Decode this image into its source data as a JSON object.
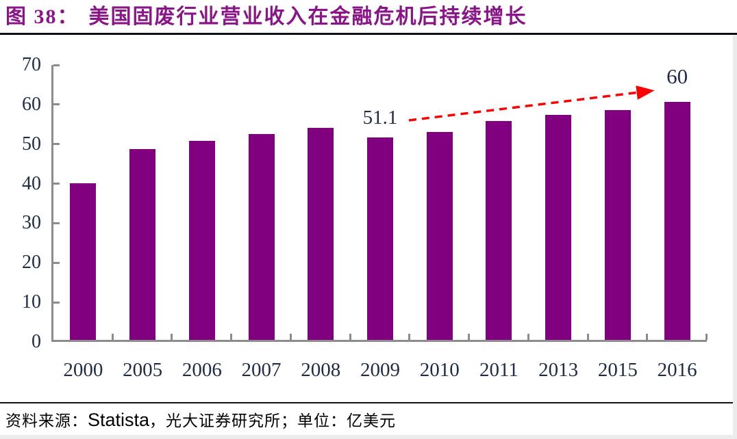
{
  "header": {
    "figure_label": "图 38：",
    "title": "美国固废行业营业收入在金融危机后持续增长",
    "accent_color": "#8A1588"
  },
  "chart_data": {
    "type": "bar",
    "title": "美国固废行业营业收入在金融危机后持续增长",
    "categories": [
      "2000",
      "2005",
      "2006",
      "2007",
      "2008",
      "2009",
      "2010",
      "2011",
      "2013",
      "2015",
      "2016"
    ],
    "values": [
      39.5,
      48.2,
      50.3,
      52.1,
      53.6,
      51.1,
      52.5,
      55.3,
      56.8,
      58.0,
      60.2
    ],
    "point_labels": [
      "",
      "",
      "",
      "",
      "",
      "51.1",
      "",
      "",
      "",
      "",
      "60"
    ],
    "xlabel": "",
    "ylabel": "",
    "unit": "亿美元",
    "ylim": [
      0,
      70
    ],
    "yticks": [
      0,
      10,
      20,
      30,
      40,
      50,
      60,
      70
    ],
    "grid": false,
    "legend": "none",
    "bar_color": "#800080",
    "axis_color": "#8C8C8C",
    "tick_label_color": "#1F2C47",
    "annotation_arrow_color": "#FF0000",
    "annotation": "red dashed trend arrow from 51.1 (2009) to 60 (2016)"
  },
  "footer": {
    "prefix": "资料来源：",
    "source": "Statista",
    "suffix": "，光大证券研究所；单位：亿美元"
  }
}
